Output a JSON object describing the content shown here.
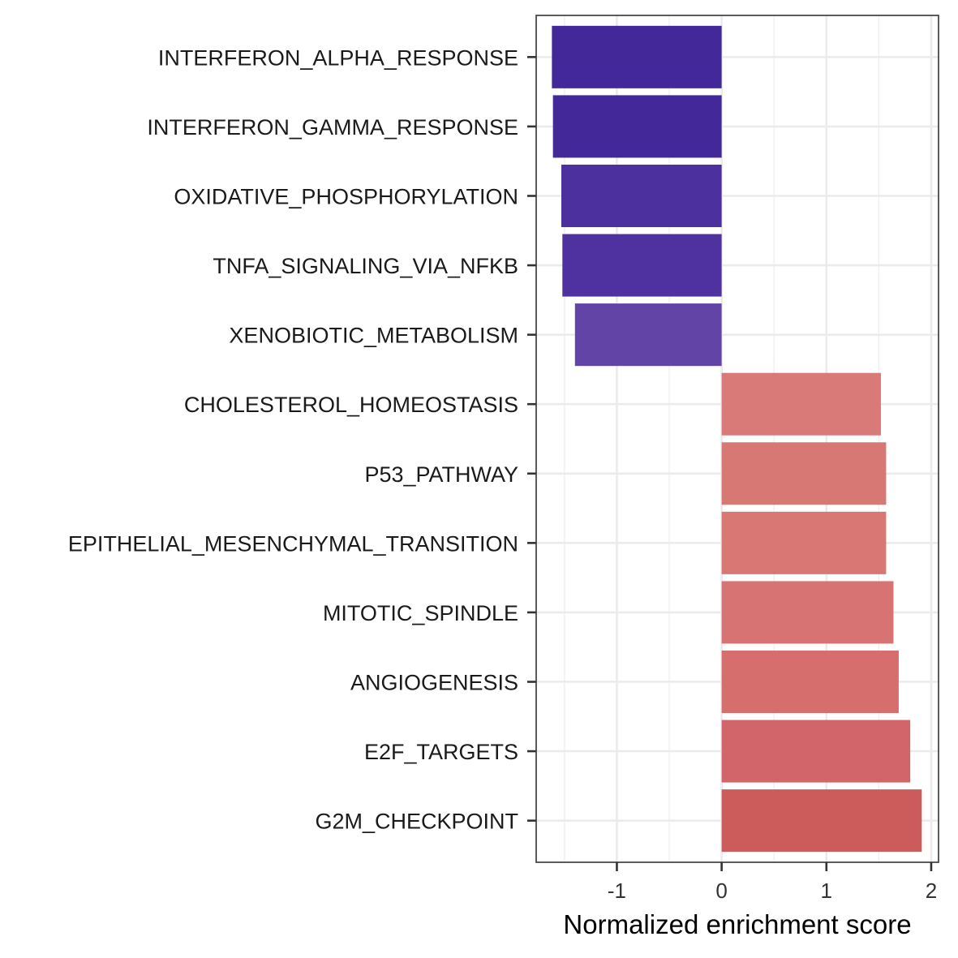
{
  "chart_data": {
    "type": "bar",
    "orientation": "horizontal",
    "xlabel": "Normalized enrichment score",
    "ylabel": "",
    "xlim": [
      -1.77,
      2.07
    ],
    "x_ticks": [
      -1,
      0,
      1,
      2
    ],
    "x_tick_labels": [
      "-1",
      "0",
      "1",
      "2"
    ],
    "grid": true,
    "categories": [
      "INTERFERON_ALPHA_RESPONSE",
      "INTERFERON_GAMMA_RESPONSE",
      "OXIDATIVE_PHOSPHORYLATION",
      "TNFA_SIGNALING_VIA_NFKB",
      "XENOBIOTIC_METABOLISM",
      "CHOLESTEROL_HOMEOSTASIS",
      "P53_PATHWAY",
      "EPITHELIAL_MESENCHYMAL_TRANSITION",
      "MITOTIC_SPINDLE",
      "ANGIOGENESIS",
      "E2F_TARGETS",
      "G2M_CHECKPOINT"
    ],
    "values": [
      -1.62,
      -1.61,
      -1.53,
      -1.52,
      -1.4,
      1.52,
      1.57,
      1.57,
      1.64,
      1.69,
      1.8,
      1.91
    ],
    "bar_colors": [
      "#43289a",
      "#43289a",
      "#4c309e",
      "#4f32a0",
      "#6243a6",
      "#d97a78",
      "#d87875",
      "#d87774",
      "#d77372",
      "#d56e6d",
      "#d2656a",
      "#cc5b5c"
    ]
  }
}
